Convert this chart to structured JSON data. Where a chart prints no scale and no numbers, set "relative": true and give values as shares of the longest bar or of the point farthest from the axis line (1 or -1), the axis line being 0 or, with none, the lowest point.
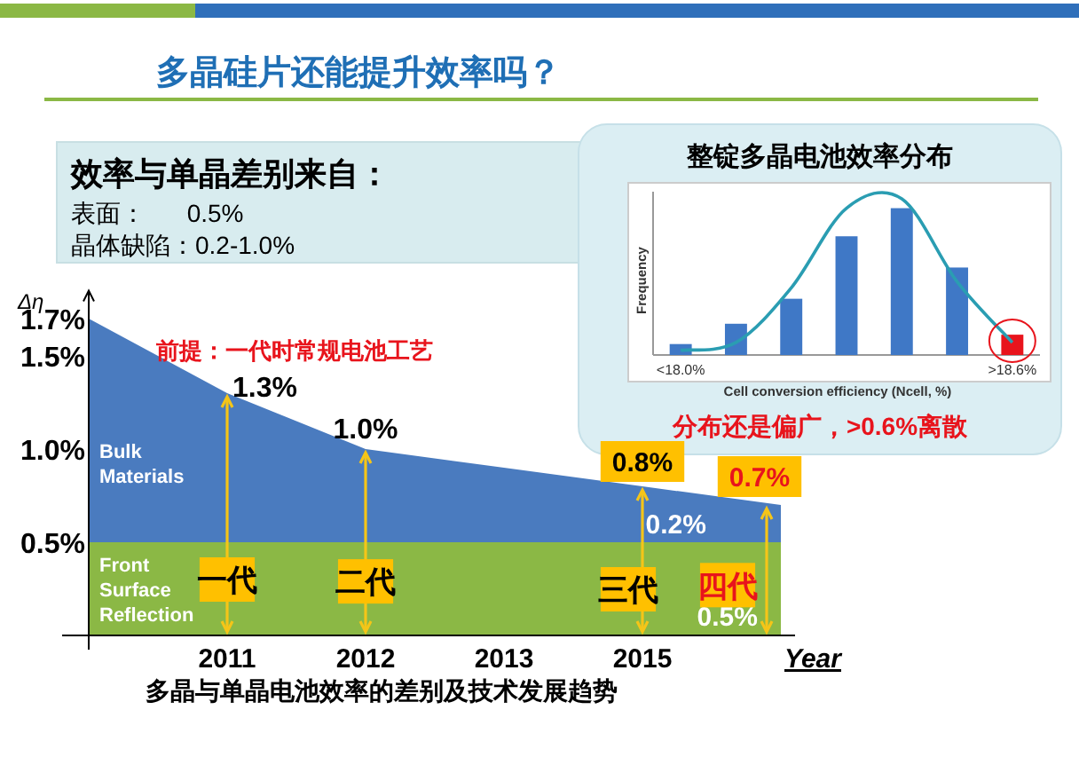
{
  "chart_data": [
    {
      "type": "other",
      "title": "效率与单晶差别来自：",
      "annotations": [
        "表面：      0.5%",
        "晶体缺陷：0.2-1.0%"
      ]
    },
    {
      "type": "bar",
      "title": "整锭多晶电池效率分布",
      "xlabel": "Cell conversion efficiency (Ncell, %)",
      "ylabel": "Frequency",
      "relative": true,
      "categories": [
        "<18.0%",
        null,
        null,
        null,
        null,
        null,
        ">18.6%"
      ],
      "series": [
        {
          "type": "bar",
          "values": [
            0.07,
            0.2,
            0.36,
            0.76,
            0.94,
            0.56,
            0.13
          ],
          "colors": [
            "#3f78c6",
            "#3f78c6",
            "#3f78c6",
            "#3f78c6",
            "#3f78c6",
            "#3f78c6",
            "#e8141c"
          ]
        },
        {
          "type": "line",
          "color": "#2a9db2",
          "values": [
            0.03,
            0.08,
            0.43,
            0.94,
            1,
            0.47,
            0.08
          ]
        }
      ],
      "annotations": [
        "分布还是偏广，>0.6%离散"
      ]
    },
    {
      "type": "area",
      "title": "多晶与单晶电池效率的差别及技术发展趋势",
      "xlabel": "Year",
      "ylabel": "Δη",
      "stacked": true,
      "categories": [
        null,
        "2011",
        "2012",
        "2013",
        "2015",
        null
      ],
      "series": [
        {
          "name": "Front Surface Reflection",
          "color": "#8bb845",
          "values": [
            0.5,
            0.5,
            0.5,
            0.5,
            0.5,
            0.5
          ]
        },
        {
          "name": "Bulk Materials",
          "color": "#4a7bbf",
          "values": [
            1.2,
            0.8,
            0.5,
            0.4,
            0.3,
            0.2
          ]
        }
      ],
      "ylim": [
        0,
        1.85
      ],
      "yticks": [
        {
          "value": 0.5,
          "label": "0.5%"
        },
        {
          "value": 1.0,
          "label": "1.0%"
        },
        {
          "value": 1.5,
          "label": "1.5%"
        },
        {
          "value": 1.7,
          "label": "1.7%"
        }
      ],
      "annotations": [
        "多晶硅片还能提升效率吗？",
        "前提：一代时常规电池工艺",
        {
          "text": "1.3%",
          "x": "2011",
          "y": 1.3
        },
        {
          "text": "1.0%",
          "x": "2012",
          "y": 1.0
        },
        {
          "text": "0.8%",
          "x": "2015",
          "y": 0.8
        },
        {
          "text": "0.7%",
          "y": 0.7
        },
        "0.2%",
        {
          "text": "0.5%",
          "y": 0.5
        },
        {
          "text": "一代",
          "x": "2011",
          "y": 0.3
        },
        {
          "text": "二代",
          "x": "2012",
          "y": 0.29
        },
        {
          "text": "三代",
          "x": "2015",
          "y": 0.8
        },
        {
          "text": "四代",
          "y": 0.27
        }
      ]
    }
  ]
}
